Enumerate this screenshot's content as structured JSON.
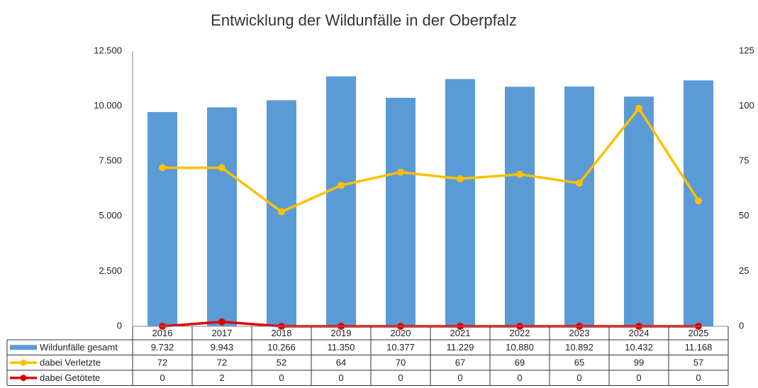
{
  "chart_data": {
    "type": "bar",
    "title": "Entwicklung der Wildunfälle in der Oberpfalz",
    "categories": [
      "2016",
      "2017",
      "2018",
      "2019",
      "2020",
      "2021",
      "2022",
      "2023",
      "2024",
      "2025"
    ],
    "series": [
      {
        "name": "Wildunfälle gesamt",
        "type": "bar",
        "color": "#5b9bd5",
        "values": [
          9732,
          9943,
          10266,
          11350,
          10377,
          11229,
          10880,
          10892,
          10432,
          11168
        ],
        "value_labels": [
          "9.732",
          "9.943",
          "10.266",
          "11.350",
          "10.377",
          "11.229",
          "10.880",
          "10.892",
          "10.432",
          "11.168"
        ]
      },
      {
        "name": "dabei Verletzte",
        "type": "line",
        "axis": "y2",
        "color": "#ffc000",
        "values": [
          72,
          72,
          52,
          64,
          70,
          67,
          69,
          65,
          99,
          57
        ]
      },
      {
        "name": "dabei Getötete",
        "type": "line",
        "axis": "y2",
        "color": "#e00000",
        "values": [
          0,
          2,
          0,
          0,
          0,
          0,
          0,
          0,
          0,
          0
        ]
      }
    ],
    "ylim": [
      0,
      12500
    ],
    "yticks": [
      0,
      {
        "value": 2500,
        "label": "2.500"
      },
      {
        "value": 5000,
        "label": "5.000"
      },
      {
        "value": 7500,
        "label": "7.500"
      },
      {
        "value": 10000,
        "label": "10.000"
      },
      {
        "value": 12500,
        "label": "12.500"
      }
    ],
    "y2lim": [
      0,
      125
    ],
    "y2ticks": [
      0,
      25,
      50,
      75,
      100,
      125
    ],
    "grid": false
  }
}
